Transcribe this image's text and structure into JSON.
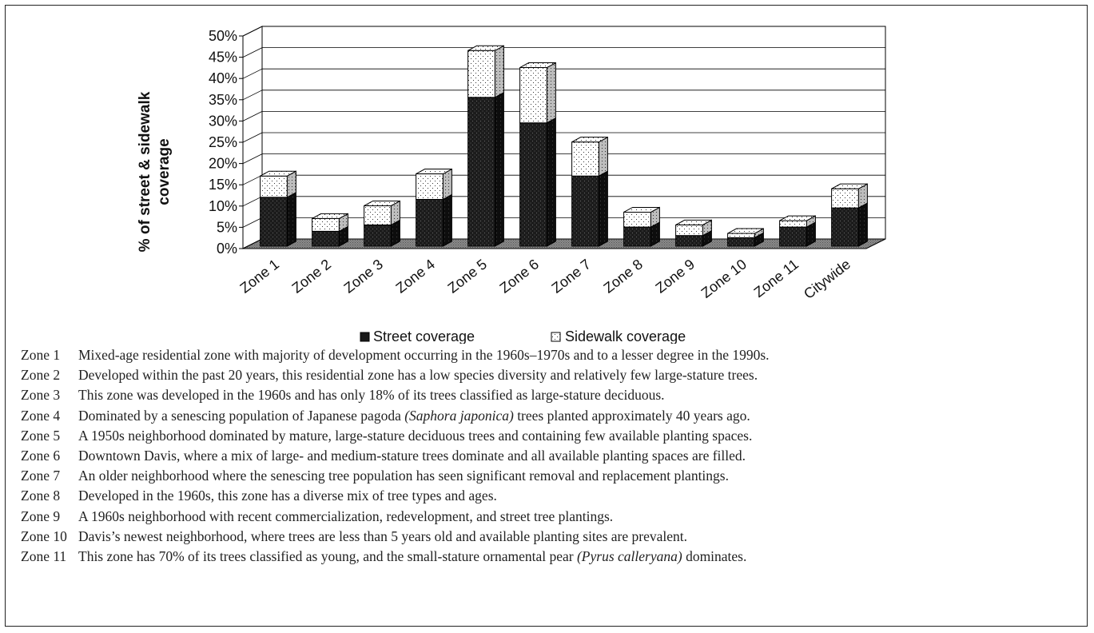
{
  "chart_data": {
    "type": "bar",
    "stacked": true,
    "three_d": true,
    "title": "",
    "xlabel": "",
    "ylabel": "% of street & sidewalk coverage",
    "ylabel_lines": [
      "% of street & sidewalk",
      "coverage"
    ],
    "ylim": [
      0,
      50
    ],
    "yticks": [
      "0%",
      "5%",
      "10%",
      "15%",
      "20%",
      "25%",
      "30%",
      "35%",
      "40%",
      "45%",
      "50%"
    ],
    "grid": true,
    "legend_position": "bottom",
    "categories": [
      "Zone 1",
      "Zone 2",
      "Zone 3",
      "Zone 4",
      "Zone 5",
      "Zone 6",
      "Zone 7",
      "Zone 8",
      "Zone 9",
      "Zone 10",
      "Zone 11",
      "Citywide"
    ],
    "series": [
      {
        "name": "Street coverage",
        "color": "#1a1a1a",
        "pattern": "dark-dotted",
        "values": [
          11.5,
          3.5,
          5,
          11,
          35,
          29,
          16.5,
          4.5,
          2.5,
          2,
          4.5,
          9
        ]
      },
      {
        "name": "Sidewalk coverage",
        "color": "#ffffff",
        "pattern": "light-dotted",
        "values": [
          5,
          3,
          4.5,
          6,
          11,
          13,
          8,
          3.5,
          2.5,
          1,
          1.5,
          4.5
        ]
      }
    ]
  },
  "notes": [
    {
      "zone": "Zone 1",
      "text": "Mixed-age residential zone with majority of development occurring in the 1960s–1970s and to a lesser degree in the 1990s."
    },
    {
      "zone": "Zone 2",
      "text": "Developed within the past 20 years, this residential zone has a low species diversity and relatively few large-stature trees."
    },
    {
      "zone": "Zone 3",
      "text": "This zone was developed in the 1960s and has only 18% of its trees classified as large-stature deciduous."
    },
    {
      "zone": "Zone 4",
      "text_before": "Dominated by a senescing population of Japanese pagoda ",
      "text_italic": "(Saphora japonica)",
      "text_after": " trees planted approximately 40 years ago."
    },
    {
      "zone": "Zone 5",
      "text": "A 1950s neighborhood dominated by mature, large-stature deciduous trees and containing few available planting spaces."
    },
    {
      "zone": "Zone 6",
      "text": "Downtown Davis, where a mix of large- and medium-stature trees dominate and all available planting spaces are filled."
    },
    {
      "zone": "Zone 7",
      "text": "An older neighborhood where the senescing tree population has seen significant removal and replacement plantings."
    },
    {
      "zone": "Zone 8",
      "text": "Developed in the 1960s, this zone has a diverse mix of tree types and ages."
    },
    {
      "zone": "Zone 9",
      "text": "A 1960s neighborhood with recent commercialization, redevelopment, and street tree plantings."
    },
    {
      "zone": "Zone 10",
      "text": "Davis’s newest neighborhood, where trees are less than 5 years old and available planting sites are prevalent."
    },
    {
      "zone": "Zone 11",
      "text_before": "This zone has 70% of its trees classified as young, and the small-stature ornamental pear ",
      "text_italic": "(Pyrus calleryana)",
      "text_after": " dominates."
    }
  ]
}
